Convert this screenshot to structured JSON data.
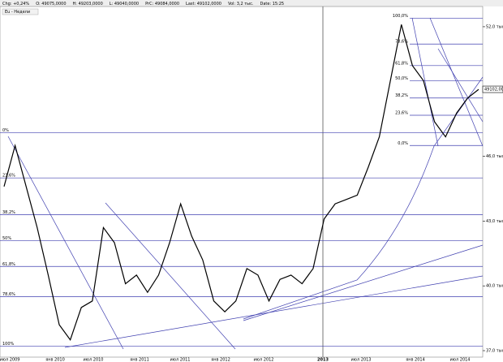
{
  "chart_data": {
    "type": "line",
    "info_bar": [
      "Chg: +0,24%",
      "O: 49075,0000",
      "H: 49203,0000",
      "L: 49040,0000",
      "PrC: 49084,0000",
      "Last: 49102,0000",
      "Vol: 3,2 тыс.",
      "Date: 15:25"
    ],
    "legend": "Eu - Недели",
    "series": [
      {
        "name": "Eu",
        "color": "#000000",
        "values": [
          44600,
          46500,
          44600,
          42700,
          40500,
          38200,
          37500,
          39000,
          39300,
          42700,
          42000,
          40100,
          40500,
          39700,
          40500,
          42000,
          43800,
          42300,
          41200,
          39300,
          38800,
          39300,
          40800,
          40500,
          39300,
          40300,
          40500,
          40100,
          40800,
          43100,
          43800,
          44000,
          44200,
          45500,
          46900,
          49500,
          52100,
          50200,
          49500,
          47600,
          46900,
          48000,
          48700,
          49100
        ]
      }
    ],
    "ylim": [
      36700,
      53050
    ],
    "yticks": [
      {
        "value": 52000,
        "label": "52,0 тыс."
      },
      {
        "value": 46000,
        "label": "46,0 тыс."
      },
      {
        "value": 43000,
        "label": "43,0 тыс."
      },
      {
        "value": 40000,
        "label": "40,0 тыс."
      },
      {
        "value": 37000,
        "label": "37,0 тыс."
      }
    ],
    "last_price": {
      "value": 49102,
      "label": "49102,00"
    },
    "x_labels": [
      "июл 2009",
      "янв 2010",
      "июл 2010",
      "янв 2011",
      "июл 2011",
      "янв 2012",
      "июл 2012",
      "2013",
      "июл 2013",
      "янв 2014",
      "июл 2014"
    ],
    "fib_right": [
      {
        "value": 52400,
        "label": "100,0%"
      },
      {
        "value": 51200,
        "label": "78,6%"
      },
      {
        "value": 50200,
        "label": "61,8%"
      },
      {
        "value": 49500,
        "label": "50,0%"
      },
      {
        "value": 48700,
        "label": "38,2%"
      },
      {
        "value": 47900,
        "label": "23,6%"
      },
      {
        "value": 46500,
        "label": "0,0%"
      }
    ],
    "fib_left": [
      {
        "value": 47100,
        "label": "0%"
      },
      {
        "value": 45000,
        "label": "23,6%"
      },
      {
        "value": 43300,
        "label": "38,2%"
      },
      {
        "value": 42100,
        "label": "50%"
      },
      {
        "value": 40900,
        "label": "61,8%"
      },
      {
        "value": 39500,
        "label": "78,6%"
      },
      {
        "value": 37200,
        "label": "100%"
      }
    ],
    "fib_color": "#4040b0"
  }
}
